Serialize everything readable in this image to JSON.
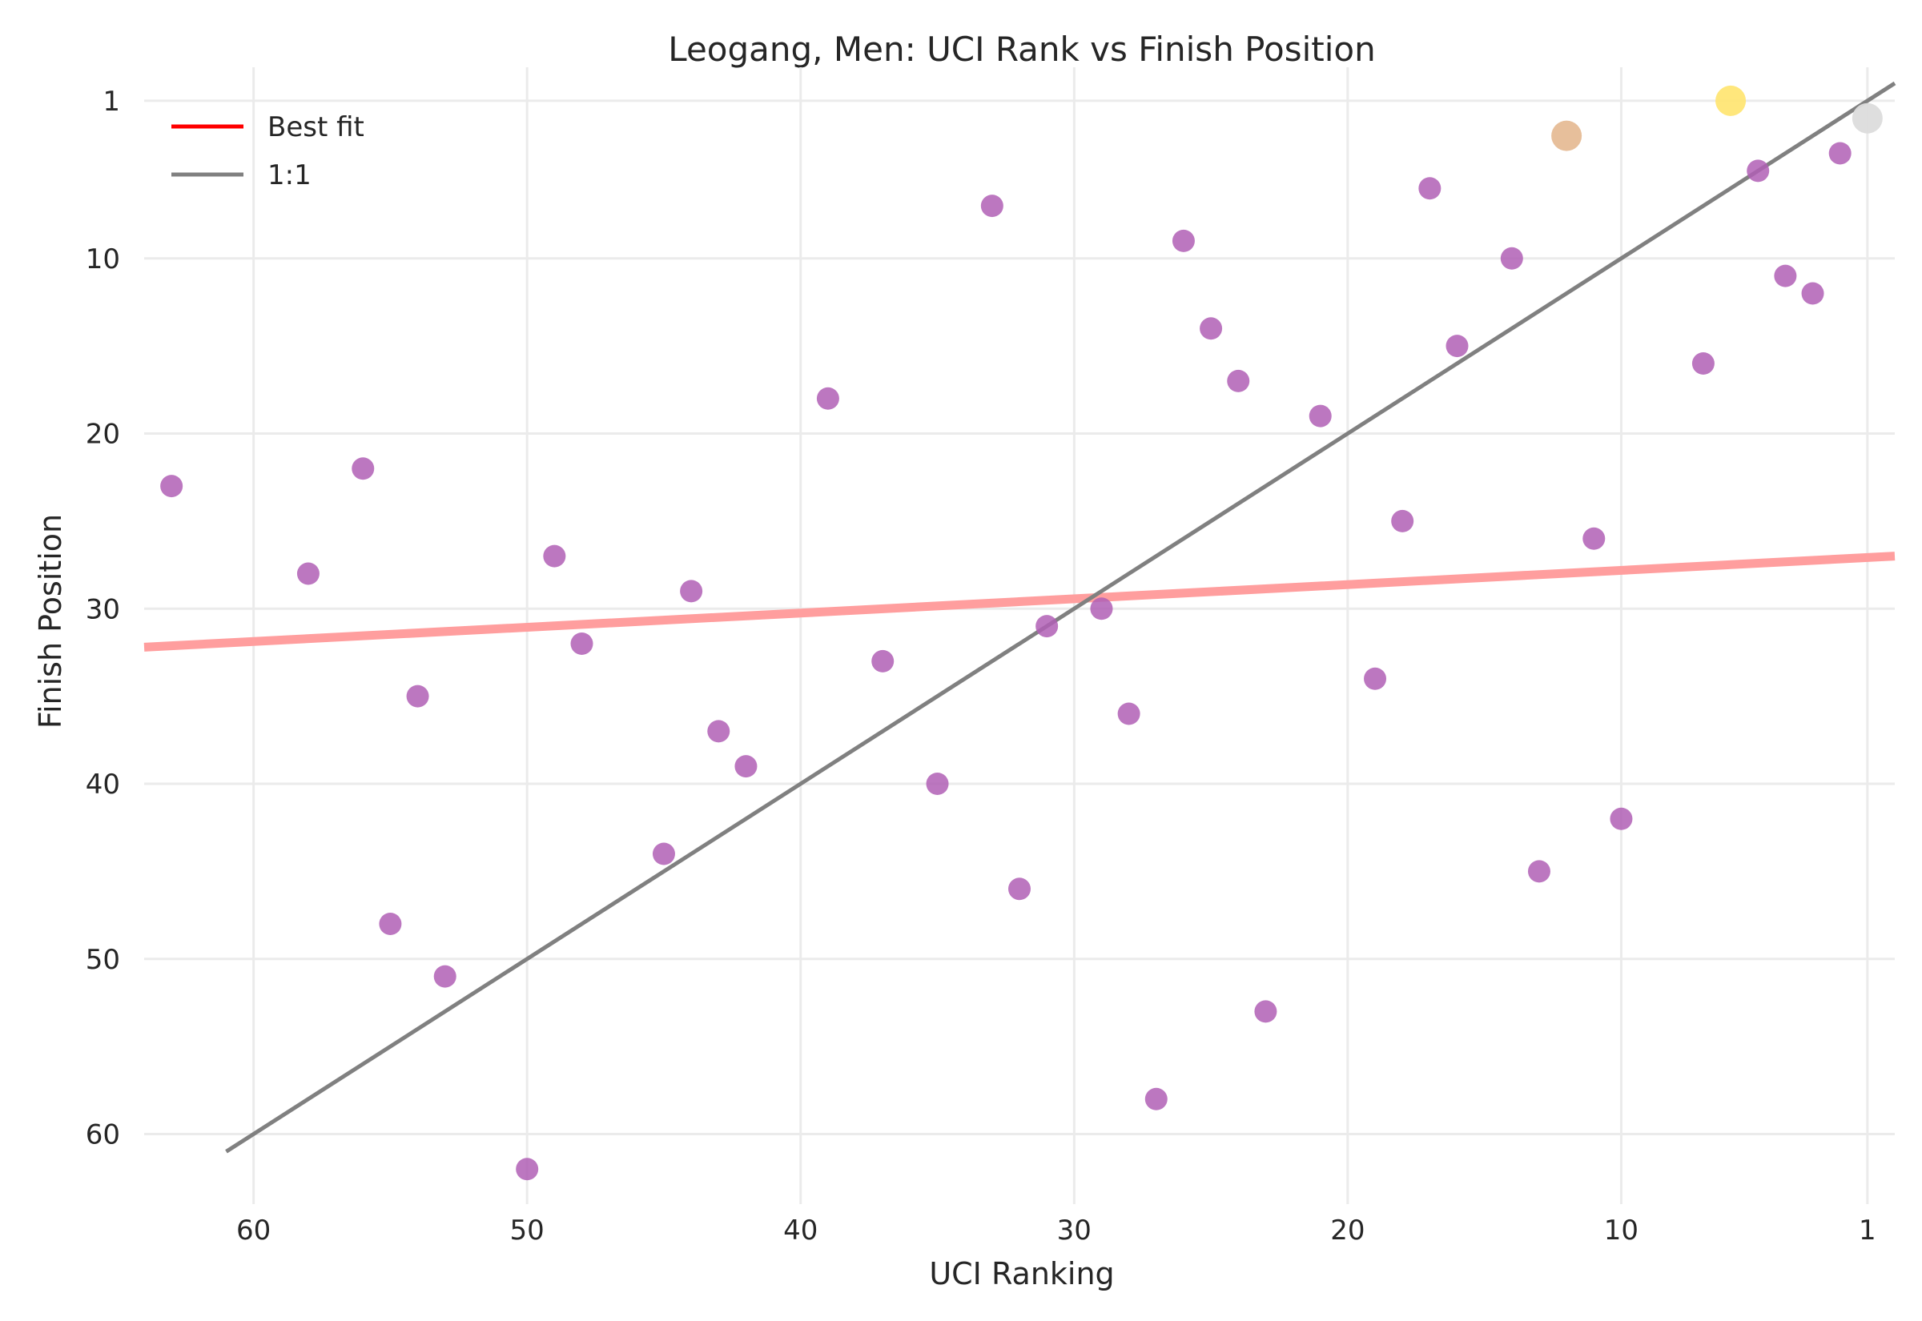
{
  "chart_data": {
    "type": "scatter",
    "title": "Leogang, Men: UCI Rank vs Finish Position",
    "xlabel": "UCI Ranking",
    "ylabel": "Finish Position",
    "xlim": [
      64,
      0
    ],
    "ylim": [
      64,
      0
    ],
    "x_inverted": true,
    "y_inverted": true,
    "xticks": [
      60,
      50,
      40,
      30,
      20,
      10,
      1
    ],
    "yticks": [
      1,
      10,
      20,
      30,
      40,
      50,
      60
    ],
    "grid": true,
    "legend": {
      "placement": "top-left",
      "entries": [
        {
          "label": "Best fit",
          "color": "#ff0000"
        },
        {
          "label": "1:1",
          "color": "#808080"
        }
      ]
    },
    "colors": {
      "points": "#b05fb5",
      "gold": "#ffe675",
      "silver": "#dcdcdc",
      "bronze": "#e6bc96",
      "best_fit_line": "#ff9e9e",
      "identity_line": "#808080"
    },
    "best_fit": {
      "x": [
        64,
        0
      ],
      "y": [
        32.2,
        27.0
      ]
    },
    "identity": {
      "x": [
        61,
        0
      ],
      "y": [
        61,
        0
      ]
    },
    "podium": [
      {
        "x": 6,
        "y": 1,
        "medal": "gold"
      },
      {
        "x": 1,
        "y": 2,
        "medal": "silver"
      },
      {
        "x": 12,
        "y": 3,
        "medal": "bronze"
      }
    ],
    "points": [
      {
        "x": 2,
        "y": 4
      },
      {
        "x": 5,
        "y": 5
      },
      {
        "x": 17,
        "y": 6
      },
      {
        "x": 33,
        "y": 7
      },
      {
        "x": 26,
        "y": 9
      },
      {
        "x": 14,
        "y": 10
      },
      {
        "x": 4,
        "y": 11
      },
      {
        "x": 3,
        "y": 12
      },
      {
        "x": 25,
        "y": 14
      },
      {
        "x": 16,
        "y": 15
      },
      {
        "x": 7,
        "y": 16
      },
      {
        "x": 24,
        "y": 17
      },
      {
        "x": 39,
        "y": 18
      },
      {
        "x": 21,
        "y": 19
      },
      {
        "x": 56,
        "y": 22
      },
      {
        "x": 63,
        "y": 23
      },
      {
        "x": 18,
        "y": 25
      },
      {
        "x": 11,
        "y": 26
      },
      {
        "x": 49,
        "y": 27
      },
      {
        "x": 58,
        "y": 28
      },
      {
        "x": 44,
        "y": 29
      },
      {
        "x": 29,
        "y": 30
      },
      {
        "x": 31,
        "y": 31
      },
      {
        "x": 48,
        "y": 32
      },
      {
        "x": 37,
        "y": 33
      },
      {
        "x": 19,
        "y": 34
      },
      {
        "x": 54,
        "y": 35
      },
      {
        "x": 28,
        "y": 36
      },
      {
        "x": 43,
        "y": 37
      },
      {
        "x": 42,
        "y": 39
      },
      {
        "x": 35,
        "y": 40
      },
      {
        "x": 10,
        "y": 42
      },
      {
        "x": 45,
        "y": 44
      },
      {
        "x": 13,
        "y": 45
      },
      {
        "x": 32,
        "y": 46
      },
      {
        "x": 55,
        "y": 48
      },
      {
        "x": 53,
        "y": 51
      },
      {
        "x": 23,
        "y": 53
      },
      {
        "x": 27,
        "y": 58
      },
      {
        "x": 50,
        "y": 62
      }
    ]
  }
}
